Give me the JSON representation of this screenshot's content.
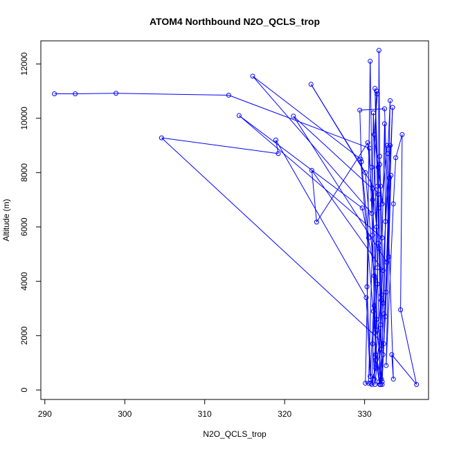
{
  "chart_data": {
    "type": "line",
    "title": "ATOM4 Northbound N2O_QCLS_trop",
    "xlabel": "N2O_QCLS_trop",
    "ylabel": "Altitude (m)",
    "xlim": [
      289.5,
      338.0
    ],
    "ylim": [
      -350,
      12850
    ],
    "x_ticks": [
      "290",
      "300",
      "310",
      "320",
      "330"
    ],
    "y_ticks": [
      "0",
      "2000",
      "4000",
      "6000",
      "8000",
      "10000",
      "12000"
    ],
    "grid": false,
    "series_color": "#0000ff",
    "points": [
      {
        "x": 291.2,
        "y": 10900
      },
      {
        "x": 293.8,
        "y": 10900
      },
      {
        "x": 298.9,
        "y": 10920
      },
      {
        "x": 313.0,
        "y": 10850
      },
      {
        "x": 330.6,
        "y": 8900
      },
      {
        "x": 331.0,
        "y": 5700
      },
      {
        "x": 331.4,
        "y": 800
      },
      {
        "x": 330.9,
        "y": 200
      },
      {
        "x": 331.2,
        "y": 3100
      },
      {
        "x": 331.6,
        "y": 7500
      },
      {
        "x": 331.3,
        "y": 11100
      },
      {
        "x": 331.8,
        "y": 6700
      },
      {
        "x": 332.1,
        "y": 1500
      },
      {
        "x": 330.8,
        "y": 250
      },
      {
        "x": 330.3,
        "y": 3800
      },
      {
        "x": 330.7,
        "y": 12100
      },
      {
        "x": 330.9,
        "y": 8200
      },
      {
        "x": 331.5,
        "y": 2600
      },
      {
        "x": 331.2,
        "y": 400
      },
      {
        "x": 331.7,
        "y": 5400
      },
      {
        "x": 331.8,
        "y": 12500
      },
      {
        "x": 331.9,
        "y": 8300
      },
      {
        "x": 332.3,
        "y": 1300
      },
      {
        "x": 332.0,
        "y": 200
      },
      {
        "x": 331.6,
        "y": 4500
      },
      {
        "x": 331.1,
        "y": 10200
      },
      {
        "x": 330.9,
        "y": 6500
      },
      {
        "x": 316.0,
        "y": 11550
      },
      {
        "x": 329.5,
        "y": 8500
      },
      {
        "x": 331.3,
        "y": 2100
      },
      {
        "x": 331.8,
        "y": 300
      },
      {
        "x": 332.1,
        "y": 3300
      },
      {
        "x": 331.7,
        "y": 7200
      },
      {
        "x": 323.3,
        "y": 11250
      },
      {
        "x": 330.1,
        "y": 8000
      },
      {
        "x": 331.2,
        "y": 4200
      },
      {
        "x": 331.4,
        "y": 1100
      },
      {
        "x": 331.9,
        "y": 200
      },
      {
        "x": 332.4,
        "y": 2800
      },
      {
        "x": 332.6,
        "y": 6200
      },
      {
        "x": 332.5,
        "y": 9800
      },
      {
        "x": 332.2,
        "y": 5600
      },
      {
        "x": 314.3,
        "y": 10100
      },
      {
        "x": 329.7,
        "y": 6700
      },
      {
        "x": 331.6,
        "y": 3900
      },
      {
        "x": 331.0,
        "y": 1700
      },
      {
        "x": 331.3,
        "y": 200
      },
      {
        "x": 332.3,
        "y": 3200
      },
      {
        "x": 332.9,
        "y": 8700
      },
      {
        "x": 333.2,
        "y": 10650
      },
      {
        "x": 332.8,
        "y": 4700
      },
      {
        "x": 321.1,
        "y": 10080
      },
      {
        "x": 331.0,
        "y": 7400
      },
      {
        "x": 331.8,
        "y": 5200
      },
      {
        "x": 332.0,
        "y": 2400
      },
      {
        "x": 332.2,
        "y": 300
      },
      {
        "x": 332.7,
        "y": 3600
      },
      {
        "x": 333.5,
        "y": 10400
      },
      {
        "x": 333.1,
        "y": 7800
      },
      {
        "x": 332.4,
        "y": 1700
      },
      {
        "x": 304.6,
        "y": 9280
      },
      {
        "x": 319.2,
        "y": 8700
      },
      {
        "x": 318.9,
        "y": 9200
      },
      {
        "x": 330.2,
        "y": 3400
      },
      {
        "x": 330.7,
        "y": 500
      },
      {
        "x": 331.1,
        "y": 2900
      },
      {
        "x": 331.5,
        "y": 6000
      },
      {
        "x": 331.9,
        "y": 8600
      },
      {
        "x": 332.3,
        "y": 4400
      },
      {
        "x": 323.4,
        "y": 8080
      },
      {
        "x": 324.0,
        "y": 6180
      },
      {
        "x": 330.4,
        "y": 9100
      },
      {
        "x": 331.0,
        "y": 7000
      },
      {
        "x": 331.6,
        "y": 2200
      },
      {
        "x": 332.1,
        "y": 400
      },
      {
        "x": 332.6,
        "y": 2700
      },
      {
        "x": 333.3,
        "y": 7900
      },
      {
        "x": 333.0,
        "y": 4900
      },
      {
        "x": 332.7,
        "y": 900
      },
      {
        "x": 333.6,
        "y": 6850
      },
      {
        "x": 333.9,
        "y": 8550
      },
      {
        "x": 334.7,
        "y": 9400
      },
      {
        "x": 334.5,
        "y": 2950
      },
      {
        "x": 336.5,
        "y": 200
      },
      {
        "x": 333.4,
        "y": 1300
      },
      {
        "x": 333.6,
        "y": 400
      },
      {
        "x": 332.5,
        "y": 10350
      },
      {
        "x": 329.4,
        "y": 10300
      },
      {
        "x": 329.6,
        "y": 8400
      },
      {
        "x": 330.5,
        "y": 5600
      },
      {
        "x": 330.1,
        "y": 250
      },
      {
        "x": 330.5,
        "y": 250
      },
      {
        "x": 331.5,
        "y": 11000
      },
      {
        "x": 331.6,
        "y": 10900
      },
      {
        "x": 331.2,
        "y": 9400
      },
      {
        "x": 331.7,
        "y": 8200
      },
      {
        "x": 332.0,
        "y": 7500
      },
      {
        "x": 332.2,
        "y": 6850
      },
      {
        "x": 332.8,
        "y": 9000
      },
      {
        "x": 333.2,
        "y": 9000
      },
      {
        "x": 332.1,
        "y": 3500
      },
      {
        "x": 331.4,
        "y": 1300
      },
      {
        "x": 332.2,
        "y": 200
      }
    ]
  }
}
